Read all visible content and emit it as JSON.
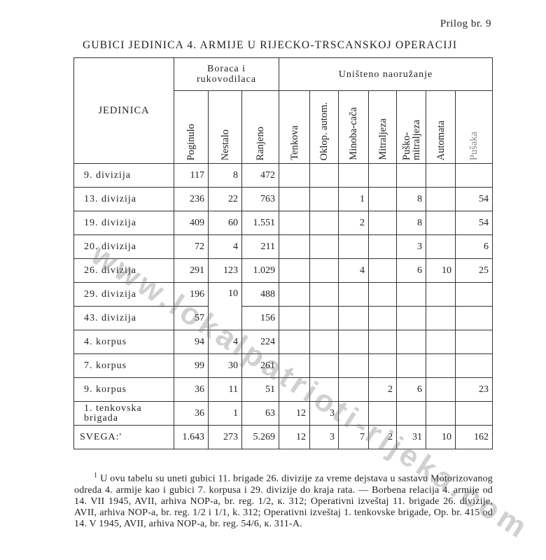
{
  "page_label": "Prilog br. 9",
  "title": "GUBICI JEDINICA 4. ARMIJE U RIJECKO-TRSCANSKOJ OPERACIJI",
  "watermark": "www.lokalpatrioti-rijeka.com",
  "table": {
    "unit_header": "JEDINICA",
    "group_fighters": "Boraca i rukovodilaca",
    "group_weapons": "Uništeno naoružanje",
    "columns": [
      "Poginulo",
      "Nestalo",
      "Ranjeno",
      "Tenkova",
      "Oklop. autom.",
      "Minoba-cača",
      "Mitraljeza",
      "Puško-mitraljeza",
      "Automata",
      "Pušaka"
    ],
    "rows": [
      {
        "unit": "9. divizija",
        "values": [
          "117",
          "8",
          "472",
          "",
          "",
          "",
          "",
          "",
          "",
          ""
        ]
      },
      {
        "unit": "13. divizija",
        "values": [
          "236",
          "22",
          "763",
          "",
          "",
          "1",
          "",
          "8",
          "",
          "54"
        ]
      },
      {
        "unit": "19. divizija",
        "values": [
          "409",
          "60",
          "1.551",
          "",
          "",
          "2",
          "",
          "8",
          "",
          "54"
        ]
      },
      {
        "unit": "20. divizija",
        "values": [
          "72",
          "4",
          "211",
          "",
          "",
          "",
          "",
          "3",
          "",
          "6"
        ]
      },
      {
        "unit": "26. divizija",
        "values": [
          "291",
          "123",
          "1.029",
          "",
          "",
          "4",
          "",
          "6",
          "10",
          "25"
        ]
      },
      {
        "unit": "29. divizija",
        "values": [
          "196",
          "10",
          "488",
          "",
          "",
          "",
          "",
          "",
          "",
          ""
        ]
      },
      {
        "unit": "43. divizija",
        "values": [
          "57",
          null,
          "156",
          "",
          "",
          "",
          "",
          "",
          "",
          ""
        ]
      },
      {
        "unit": "4. korpus",
        "values": [
          "94",
          "4",
          "224",
          "",
          "",
          "",
          "",
          "",
          "",
          ""
        ]
      },
      {
        "unit": "7. korpus",
        "values": [
          "99",
          "30",
          "261",
          "",
          "",
          "",
          "",
          "",
          "",
          ""
        ]
      },
      {
        "unit": "9. korpus",
        "values": [
          "36",
          "11",
          "51",
          "",
          "",
          "",
          "2",
          "6",
          "",
          "23"
        ]
      },
      {
        "unit": "1. tenkovska brigada",
        "values": [
          "36",
          "1",
          "63",
          "12",
          "3",
          "",
          "",
          "",
          "",
          ""
        ]
      },
      {
        "unit": "SVEGA:'",
        "values": [
          "1.643",
          "273",
          "5.269",
          "12",
          "3",
          "7",
          "2",
          "31",
          "10",
          "162"
        ]
      }
    ]
  },
  "footnote": {
    "marker": "1",
    "text": "U ovu tabelu su uneti gubici 11. brigade 26. divizije za vreme dejstava u sastavu Motorizovanog odreda 4. armije kao i gubici 7. korpusa i 29. divizije do kraja rata. — Borbena relacija 4. armije od 14. VII 1945, AVII, arhiva NOP-a, br. reg. 1/2, к. 312; Operativni izveštaj 11. brigade 26. divizije, AVII, arhiva NOP-a, br. reg. 1/2 i 1/1, k. 312; Operativni izveštaj 1. tenkovske brigade, Op. br. 415 od 14. V 1945, AVII, arhiva NOP-a, br. reg. 54/6, к. 311-A."
  }
}
